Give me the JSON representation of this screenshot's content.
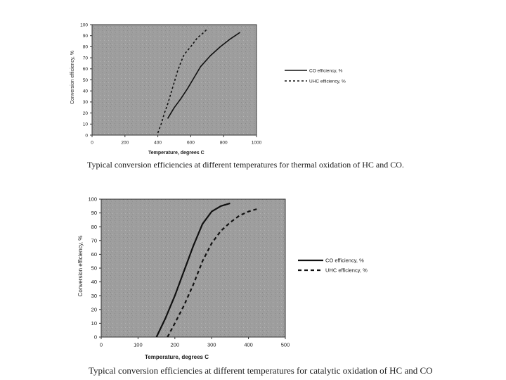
{
  "chart_data": [
    {
      "type": "line",
      "xlabel": "Temperature, degrees C",
      "ylabel": "Conversion efficiency, %",
      "xlim": [
        0,
        1000
      ],
      "ylim": [
        0,
        100
      ],
      "xticks": [
        0,
        200,
        400,
        600,
        800,
        1000
      ],
      "yticks": [
        0,
        10,
        20,
        30,
        40,
        50,
        60,
        70,
        80,
        90,
        100
      ],
      "legend_position": "right",
      "series": [
        {
          "name": "CO efficiency, %",
          "style": "solid",
          "x": [
            460,
            480,
            500,
            540,
            580,
            620,
            660,
            720,
            780,
            840,
            900
          ],
          "y": [
            15,
            20,
            25,
            33,
            42,
            52,
            62,
            72,
            80,
            87,
            93
          ]
        },
        {
          "name": "UHC efficiency, %",
          "style": "dotted",
          "x": [
            400,
            420,
            440,
            460,
            480,
            500,
            520,
            540,
            560,
            600,
            640,
            680,
            700
          ],
          "y": [
            2,
            10,
            20,
            28,
            38,
            48,
            58,
            66,
            73,
            80,
            88,
            93,
            96
          ]
        }
      ],
      "caption": "Typical conversion efficiencies at different temperatures for thermal oxidation of HC and CO."
    },
    {
      "type": "line",
      "xlabel": "Temperature, degrees C",
      "ylabel": "Conversion efficiency, %",
      "xlim": [
        0,
        500
      ],
      "ylim": [
        0,
        100
      ],
      "xticks": [
        0,
        100,
        200,
        300,
        400,
        500
      ],
      "yticks": [
        0,
        10,
        20,
        30,
        40,
        50,
        60,
        70,
        80,
        90,
        100
      ],
      "legend_position": "right",
      "series": [
        {
          "name": "CO efficiency, %",
          "style": "solid",
          "x": [
            150,
            175,
            200,
            225,
            250,
            275,
            300,
            325,
            350
          ],
          "y": [
            0,
            14,
            30,
            48,
            66,
            82,
            91,
            95,
            97
          ]
        },
        {
          "name": "UHC efficiency, %",
          "style": "dashed",
          "x": [
            180,
            200,
            225,
            250,
            275,
            300,
            325,
            350,
            375,
            400,
            425
          ],
          "y": [
            0,
            10,
            23,
            38,
            55,
            68,
            77,
            83,
            88,
            91,
            93
          ]
        }
      ],
      "caption": "Typical conversion efficiencies at different temperatures for catalytic oxidation of HC and CO"
    }
  ]
}
